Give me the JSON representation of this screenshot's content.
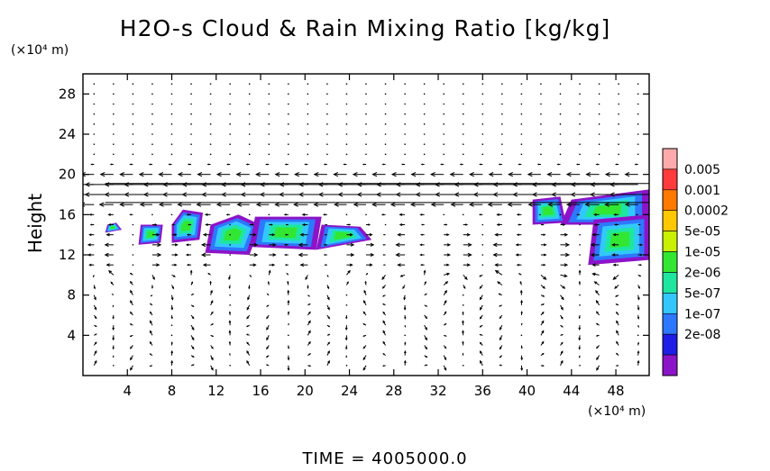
{
  "chart_data": {
    "type": "heatmap",
    "title": "H2O-s Cloud & Rain Mixing Ratio [kg/kg]",
    "ylabel": "Height",
    "y_unit": "(×10⁴ m)",
    "x_unit": "(×10⁴ m)",
    "footer": "TIME = 4005000.0",
    "xlim": [
      0,
      51
    ],
    "ylim": [
      0,
      30
    ],
    "x_ticks": [
      4,
      8,
      12,
      16,
      20,
      24,
      28,
      32,
      36,
      40,
      44,
      48
    ],
    "y_ticks": [
      4,
      8,
      12,
      16,
      20,
      24,
      28
    ],
    "colorbar": {
      "labels": [
        "0.005",
        "0.001",
        "0.0002",
        "5e-05",
        "1e-05",
        "2e-06",
        "5e-07",
        "1e-07",
        "2e-08"
      ],
      "colors": [
        "#ffaaaa",
        "#ff3b3b",
        "#ff7a00",
        "#ffc800",
        "#c8f000",
        "#32e632",
        "#1ee6a0",
        "#32c8ff",
        "#2d78ff",
        "#1e1ee6",
        "#8c14c8"
      ]
    },
    "cloud_regions": [
      {
        "x": [
          2,
          3.5,
          3,
          2.2
        ],
        "y": [
          14.2,
          14.5,
          15.2,
          15
        ]
      },
      {
        "x": [
          5,
          7,
          7.2,
          5.2
        ],
        "y": [
          13,
          13.2,
          15,
          15
        ]
      },
      {
        "x": [
          8,
          10.5,
          10.8,
          9,
          8
        ],
        "y": [
          13.2,
          13.5,
          16.2,
          16.5,
          15
        ]
      },
      {
        "x": [
          11,
          15,
          16,
          14,
          11.5
        ],
        "y": [
          12.2,
          12,
          15,
          16,
          15
        ]
      },
      {
        "x": [
          15,
          21,
          21.5,
          15.5
        ],
        "y": [
          12.8,
          12.5,
          15.8,
          15.8
        ]
      },
      {
        "x": [
          21,
          26,
          25,
          21.5
        ],
        "y": [
          12.5,
          13.5,
          14.8,
          15
        ]
      },
      {
        "x": [
          43,
          51,
          51,
          44
        ],
        "y": [
          15,
          15,
          18.5,
          17.5
        ]
      },
      {
        "x": [
          45.5,
          51,
          51,
          46
        ],
        "y": [
          11,
          11.5,
          16,
          15.5
        ]
      },
      {
        "x": [
          40.5,
          43.5,
          43,
          40.5
        ],
        "y": [
          15,
          15.2,
          17.8,
          17.5
        ]
      }
    ],
    "wind_note": "vector field arrows; strong easterly jet near 17–20 ×10⁴ m"
  }
}
